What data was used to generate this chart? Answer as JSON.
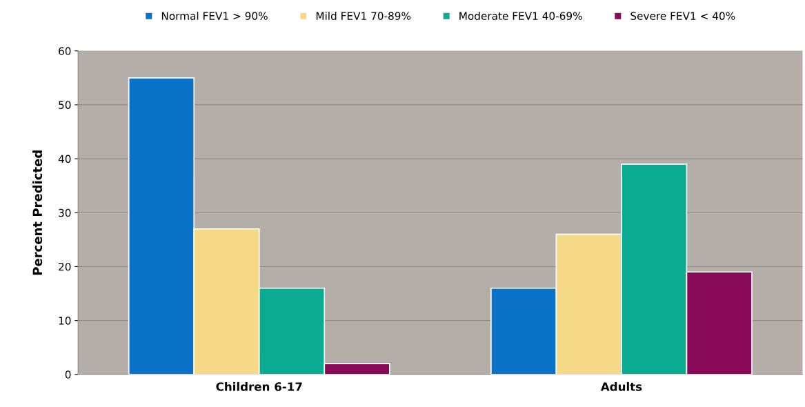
{
  "chart_data": {
    "type": "bar",
    "ylabel": "Percent Predicted",
    "categories": [
      "Children 6-17",
      "Adults"
    ],
    "series": [
      {
        "name": "Normal FEV1 > 90%",
        "color": "#0a73c8",
        "values": [
          55,
          16
        ]
      },
      {
        "name": "Mild FEV1 70-89%",
        "color": "#f5d987",
        "values": [
          27,
          26
        ]
      },
      {
        "name": "Moderate FEV1 40-69%",
        "color": "#0aab91",
        "values": [
          16,
          39
        ]
      },
      {
        "name": "Severe FEV1 < 40%",
        "color": "#8a0a5a",
        "values": [
          2,
          19
        ]
      }
    ],
    "ylim": [
      0,
      60
    ],
    "yticks": [
      0,
      10,
      20,
      30,
      40,
      50,
      60
    ],
    "grid": "y",
    "legend": "top"
  }
}
